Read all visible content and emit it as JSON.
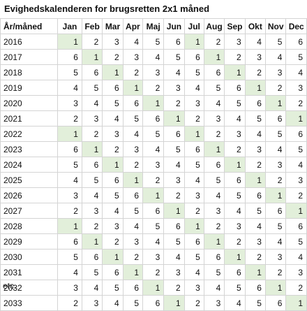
{
  "title": "Evighedskalenderen for brugsretten 2x1 måned",
  "header": {
    "year_label": "År/måned",
    "months": [
      "Jan",
      "Feb",
      "Mar",
      "Apr",
      "Maj",
      "Jun",
      "Jul",
      "Aug",
      "Sep",
      "Okt",
      "Nov",
      "Dec"
    ]
  },
  "highlight_value": 1,
  "highlight_color": "#e2efda",
  "rows": [
    {
      "year": "2016",
      "values": [
        1,
        2,
        3,
        4,
        5,
        6,
        1,
        2,
        3,
        4,
        5,
        6
      ]
    },
    {
      "year": "2017",
      "values": [
        6,
        1,
        2,
        3,
        4,
        5,
        6,
        1,
        2,
        3,
        4,
        5
      ]
    },
    {
      "year": "2018",
      "values": [
        5,
        6,
        1,
        2,
        3,
        4,
        5,
        6,
        1,
        2,
        3,
        4
      ]
    },
    {
      "year": "2019",
      "values": [
        4,
        5,
        6,
        1,
        2,
        3,
        4,
        5,
        6,
        1,
        2,
        3
      ]
    },
    {
      "year": "2020",
      "values": [
        3,
        4,
        5,
        6,
        1,
        2,
        3,
        4,
        5,
        6,
        1,
        2
      ]
    },
    {
      "year": "2021",
      "values": [
        2,
        3,
        4,
        5,
        6,
        1,
        2,
        3,
        4,
        5,
        6,
        1
      ]
    },
    {
      "year": "2022",
      "values": [
        1,
        2,
        3,
        4,
        5,
        6,
        1,
        2,
        3,
        4,
        5,
        6
      ]
    },
    {
      "year": "2023",
      "values": [
        6,
        1,
        2,
        3,
        4,
        5,
        6,
        1,
        2,
        3,
        4,
        5
      ]
    },
    {
      "year": "2024",
      "values": [
        5,
        6,
        1,
        2,
        3,
        4,
        5,
        6,
        1,
        2,
        3,
        4
      ]
    },
    {
      "year": "2025",
      "values": [
        4,
        5,
        6,
        1,
        2,
        3,
        4,
        5,
        6,
        1,
        2,
        3
      ]
    },
    {
      "year": "2026",
      "values": [
        3,
        4,
        5,
        6,
        1,
        2,
        3,
        4,
        5,
        6,
        1,
        2
      ]
    },
    {
      "year": "2027",
      "values": [
        2,
        3,
        4,
        5,
        6,
        1,
        2,
        3,
        4,
        5,
        6,
        1
      ]
    },
    {
      "year": "2028",
      "values": [
        1,
        2,
        3,
        4,
        5,
        6,
        1,
        2,
        3,
        4,
        5,
        6
      ]
    },
    {
      "year": "2029",
      "values": [
        6,
        1,
        2,
        3,
        4,
        5,
        6,
        1,
        2,
        3,
        4,
        5
      ]
    },
    {
      "year": "2030",
      "values": [
        5,
        6,
        1,
        2,
        3,
        4,
        5,
        6,
        1,
        2,
        3,
        4
      ]
    },
    {
      "year": "2031",
      "values": [
        4,
        5,
        6,
        1,
        2,
        3,
        4,
        5,
        6,
        1,
        2,
        3
      ]
    },
    {
      "year": "2032",
      "values": [
        3,
        4,
        5,
        6,
        1,
        2,
        3,
        4,
        5,
        6,
        1,
        2
      ]
    },
    {
      "year": "2033",
      "values": [
        2,
        3,
        4,
        5,
        6,
        1,
        2,
        3,
        4,
        5,
        6,
        1
      ]
    }
  ],
  "footer": "etc."
}
